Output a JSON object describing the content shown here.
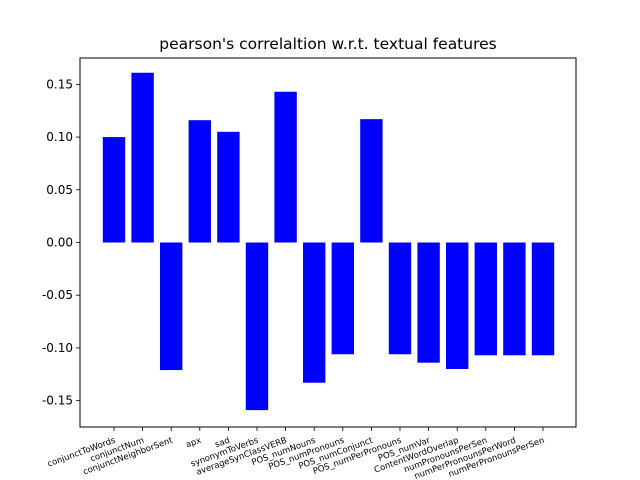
{
  "chart_data": {
    "type": "bar",
    "title": "pearson's correlaltion w.r.t. textual features",
    "xlabel": "",
    "ylabel": "",
    "bar_color": "#0000ff",
    "categories": [
      "conjunctToWords",
      "conjunctNum",
      "conjunctNeighborSent",
      "apx",
      "sad",
      "synonymToVerbs",
      "averageSynClassVERB",
      "POS_numNouns",
      "POS_numPronouns",
      "POS_numConjunct",
      "POS_numPerPronouns",
      "POS_numVar",
      "ContentWordOverlap",
      "numPronounsPerSen",
      "numPerPronounsPerWord",
      "numPerPronounsPerSen"
    ],
    "values": [
      0.1,
      0.161,
      -0.121,
      0.116,
      0.105,
      -0.159,
      0.143,
      -0.133,
      -0.106,
      0.117,
      -0.106,
      -0.114,
      -0.12,
      -0.107,
      -0.107,
      -0.107
    ],
    "ylim": [
      -0.175,
      0.175
    ],
    "yticks": [
      "-0.15",
      "-0.10",
      "-0.05",
      "0.00",
      "0.05",
      "0.10",
      "0.15"
    ],
    "grid": false,
    "legend": "none"
  }
}
